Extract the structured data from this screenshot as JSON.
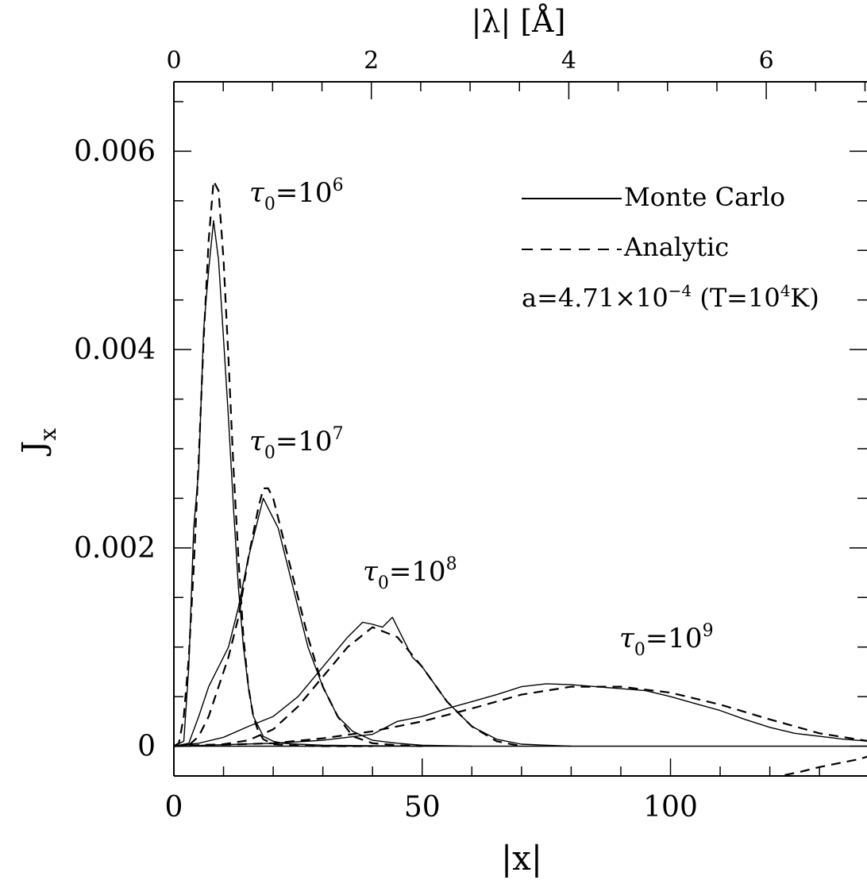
{
  "chart_data": {
    "type": "line",
    "title": "",
    "xlabel": "|x|",
    "ylabel": "J",
    "ylabel_subscript": "x",
    "top_xlabel": "|λ|  [Å]",
    "xlim": [
      0,
      140
    ],
    "ylim": [
      -0.0003,
      0.0067
    ],
    "xticks": [
      0,
      50,
      100
    ],
    "xtick_labels": [
      "0",
      "50",
      "100"
    ],
    "yticks": [
      0,
      0.002,
      0.004,
      0.006
    ],
    "ytick_labels": [
      "0",
      "0.002",
      "0.004",
      "0.006"
    ],
    "top_xticks_lambda": [
      0,
      2,
      4,
      6
    ],
    "top_xtick_labels": [
      "0",
      "2",
      "4",
      "6"
    ],
    "lambda_per_x": 0.0503,
    "grid": false,
    "legend": {
      "placement": "top-right",
      "entries": [
        {
          "label": "Monte Carlo",
          "style": "solid"
        },
        {
          "label": "Analytic",
          "style": "dashed"
        }
      ],
      "note_parts": {
        "a": "a=4.71×10",
        "a_exp": "−4",
        "t": " (T=10",
        "t_exp": "4",
        "t_end": "K)"
      }
    },
    "annotations": [
      {
        "id": "tau6",
        "prefix": "τ",
        "sub": "0",
        "mid": "=10",
        "sup": "6"
      },
      {
        "id": "tau7",
        "prefix": "τ",
        "sub": "0",
        "mid": "=10",
        "sup": "7"
      },
      {
        "id": "tau8",
        "prefix": "τ",
        "sub": "0",
        "mid": "=10",
        "sup": "8"
      },
      {
        "id": "tau9",
        "prefix": "τ",
        "sub": "0",
        "mid": "=10",
        "sup": "9"
      }
    ],
    "series": [
      {
        "tau0": "1e6",
        "style": "solid",
        "x": [
          0,
          2,
          3,
          4,
          5,
          6,
          7,
          8,
          9,
          10,
          11,
          12,
          13,
          14,
          15,
          16,
          18,
          20,
          22,
          25,
          30,
          40,
          50
        ],
        "y": [
          0,
          5e-05,
          0.0008,
          0.0022,
          0.0028,
          0.0042,
          0.0048,
          0.0053,
          0.0049,
          0.0041,
          0.0033,
          0.0024,
          0.0016,
          0.001,
          0.0006,
          0.0003,
          0.0001,
          5e-05,
          3e-05,
          2e-05,
          1e-05,
          5e-06,
          0
        ]
      },
      {
        "tau0": "1e6",
        "style": "dashed",
        "x": [
          0,
          1,
          2,
          3,
          4,
          5,
          6,
          7,
          8,
          9,
          10,
          11,
          12,
          13,
          14,
          15,
          16,
          17,
          18,
          20,
          25,
          30,
          40
        ],
        "y": [
          0,
          3e-05,
          0.0003,
          0.0009,
          0.0018,
          0.0029,
          0.0041,
          0.0051,
          0.0057,
          0.0056,
          0.0049,
          0.0039,
          0.0028,
          0.0019,
          0.0011,
          0.0006,
          0.0003,
          0.00015,
          7e-05,
          2e-05,
          5e-06,
          0,
          0
        ]
      },
      {
        "tau0": "1e7",
        "style": "solid",
        "x": [
          0,
          3,
          5,
          7,
          9,
          11,
          13,
          15,
          17,
          18,
          19,
          20,
          21,
          23,
          25,
          27,
          30,
          33,
          36,
          40,
          45,
          50,
          60
        ],
        "y": [
          0,
          3e-05,
          0.0003,
          0.0006,
          0.0008,
          0.001,
          0.0014,
          0.0019,
          0.0023,
          0.0025,
          0.0024,
          0.0023,
          0.0022,
          0.0018,
          0.0014,
          0.001,
          0.0006,
          0.0003,
          0.00015,
          6e-05,
          3e-05,
          1e-05,
          0
        ]
      },
      {
        "tau0": "1e7",
        "style": "dashed",
        "x": [
          0,
          3,
          5,
          7,
          9,
          11,
          13,
          15,
          17,
          18,
          19,
          20,
          21,
          23,
          25,
          27,
          30,
          33,
          36,
          40,
          45,
          50
        ],
        "y": [
          0,
          1e-05,
          0.0001,
          0.0003,
          0.0006,
          0.0009,
          0.0013,
          0.0019,
          0.0024,
          0.0026,
          0.0026,
          0.0025,
          0.0023,
          0.0019,
          0.0015,
          0.0011,
          0.0006,
          0.0003,
          0.0001,
          3e-05,
          1e-05,
          0
        ]
      },
      {
        "tau0": "1e8",
        "style": "solid",
        "x": [
          0,
          5,
          10,
          15,
          20,
          25,
          30,
          35,
          38,
          40,
          42,
          44,
          46,
          48,
          50,
          55,
          60,
          65,
          70,
          75,
          80
        ],
        "y": [
          0,
          3e-05,
          9e-05,
          0.0002,
          0.0003,
          0.0005,
          0.0008,
          0.0011,
          0.00125,
          0.00123,
          0.0012,
          0.0013,
          0.0011,
          0.0009,
          0.0008,
          0.00045,
          0.0002,
          7e-05,
          2e-05,
          1e-05,
          0
        ]
      },
      {
        "tau0": "1e8",
        "style": "dashed",
        "x": [
          0,
          10,
          15,
          20,
          25,
          30,
          35,
          40,
          45,
          50,
          55,
          60,
          65,
          70
        ],
        "y": [
          0,
          2e-05,
          6e-05,
          0.00017,
          0.0004,
          0.0007,
          0.001,
          0.0012,
          0.0011,
          0.0008,
          0.00045,
          0.0002,
          5e-05,
          0
        ]
      },
      {
        "tau0": "1e9",
        "style": "solid",
        "x": [
          0,
          20,
          30,
          40,
          45,
          50,
          55,
          60,
          65,
          70,
          75,
          80,
          85,
          90,
          95,
          100,
          105,
          110,
          115,
          120,
          125,
          130,
          135,
          140
        ],
        "y": [
          0,
          3e-05,
          6e-05,
          0.00012,
          0.00025,
          0.0003,
          0.00038,
          0.00045,
          0.00052,
          0.0006,
          0.00063,
          0.00062,
          0.0006,
          0.00058,
          0.00056,
          0.0005,
          0.00043,
          0.00036,
          0.00027,
          0.00019,
          0.00013,
          0.0001,
          7e-05,
          5e-05
        ]
      },
      {
        "tau0": "1e9",
        "style": "dashed",
        "x": [
          0,
          20,
          30,
          40,
          50,
          60,
          70,
          80,
          90,
          100,
          110,
          120,
          130,
          140
        ],
        "y": [
          0,
          3e-05,
          8e-05,
          0.00015,
          0.00025,
          0.00038,
          0.00052,
          0.0006,
          0.0006,
          0.00054,
          0.00042,
          0.00027,
          0.00013,
          5e-05
        ]
      },
      {
        "tau0": "edge",
        "style": "dashed",
        "x": [
          123,
          126,
          130,
          134,
          138,
          140
        ],
        "y": [
          -0.00029,
          -0.00026,
          -0.00021,
          -0.00017,
          -0.00013,
          -0.0001
        ]
      }
    ]
  }
}
